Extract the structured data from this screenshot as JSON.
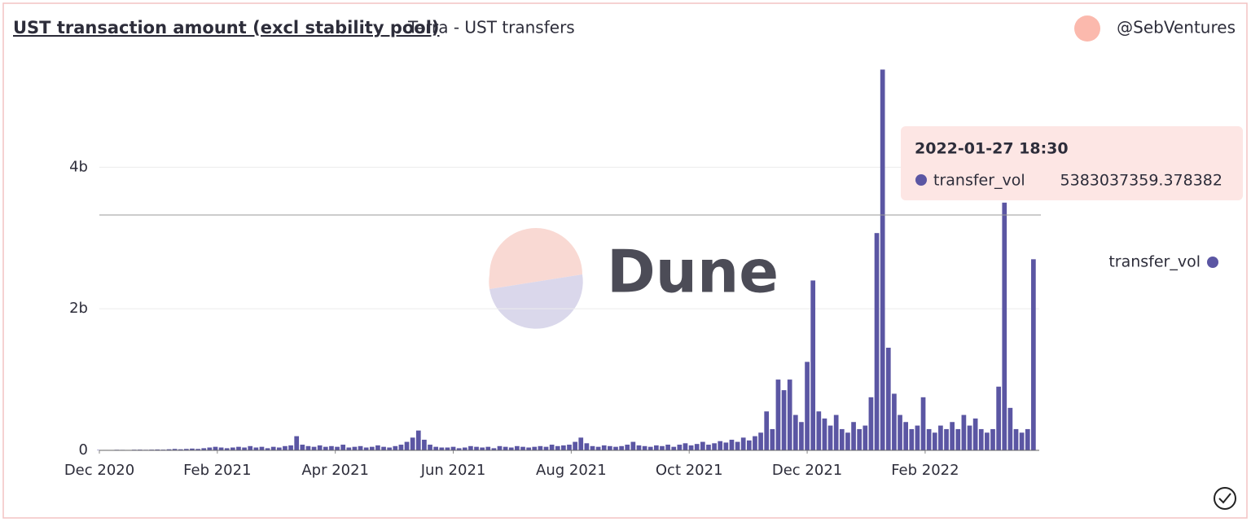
{
  "chart_data": {
    "type": "bar",
    "title": "UST transaction amount (excl stability pool)",
    "subtitle": "Terra - UST transfers",
    "author": "@SebVentures",
    "watermark": "Dune",
    "series": [
      {
        "name": "transfer_vol",
        "color": "#5b56a3",
        "values": [
          0.005,
          0.006,
          0.005,
          0.008,
          0.007,
          0.006,
          0.009,
          0.01,
          0.008,
          0.01,
          0.012,
          0.01,
          0.015,
          0.02,
          0.015,
          0.02,
          0.025,
          0.02,
          0.03,
          0.04,
          0.05,
          0.04,
          0.03,
          0.04,
          0.05,
          0.04,
          0.06,
          0.04,
          0.05,
          0.03,
          0.05,
          0.04,
          0.06,
          0.07,
          0.2,
          0.08,
          0.06,
          0.05,
          0.07,
          0.05,
          0.06,
          0.05,
          0.08,
          0.04,
          0.05,
          0.06,
          0.04,
          0.05,
          0.07,
          0.05,
          0.04,
          0.06,
          0.08,
          0.12,
          0.18,
          0.28,
          0.15,
          0.08,
          0.05,
          0.04,
          0.04,
          0.05,
          0.03,
          0.04,
          0.06,
          0.05,
          0.04,
          0.05,
          0.03,
          0.06,
          0.05,
          0.04,
          0.06,
          0.05,
          0.04,
          0.05,
          0.06,
          0.05,
          0.08,
          0.06,
          0.07,
          0.08,
          0.12,
          0.18,
          0.1,
          0.06,
          0.05,
          0.07,
          0.06,
          0.05,
          0.06,
          0.08,
          0.12,
          0.07,
          0.06,
          0.05,
          0.07,
          0.06,
          0.08,
          0.05,
          0.08,
          0.1,
          0.07,
          0.09,
          0.12,
          0.08,
          0.1,
          0.13,
          0.11,
          0.15,
          0.12,
          0.18,
          0.14,
          0.2,
          0.25,
          0.55,
          0.3,
          1.0,
          0.85,
          1.0,
          0.5,
          0.4,
          1.25,
          2.4,
          0.55,
          0.45,
          0.35,
          0.5,
          0.3,
          0.25,
          0.4,
          0.3,
          0.35,
          0.75,
          3.07,
          5.38,
          1.45,
          0.8,
          0.5,
          0.4,
          0.3,
          0.35,
          0.75,
          0.3,
          0.25,
          0.35,
          0.3,
          0.4,
          0.3,
          0.5,
          0.35,
          0.45,
          0.3,
          0.25,
          0.3,
          0.9,
          3.5,
          0.6,
          0.3,
          0.25,
          0.3,
          2.7
        ]
      }
    ],
    "x_step": 3,
    "xlim": [
      0,
      486
    ],
    "xticks": [
      {
        "value": 0,
        "label": "Dec 2020"
      },
      {
        "value": 61,
        "label": "Feb 2021"
      },
      {
        "value": 122,
        "label": "Apr 2021"
      },
      {
        "value": 183,
        "label": "Jun 2021"
      },
      {
        "value": 244,
        "label": "Aug 2021"
      },
      {
        "value": 305,
        "label": "Oct 2021"
      },
      {
        "value": 366,
        "label": "Dec 2021"
      },
      {
        "value": 427,
        "label": "Feb 2022"
      }
    ],
    "ylim": [
      0,
      5.5
    ],
    "yticks": [
      0,
      {
        "value": 2,
        "label": "2b"
      },
      {
        "value": 4,
        "label": "4b"
      }
    ],
    "grid": true,
    "tooltip": {
      "x_label": "2022-01-27 18:30",
      "value_label": "5383037359.378382"
    }
  }
}
